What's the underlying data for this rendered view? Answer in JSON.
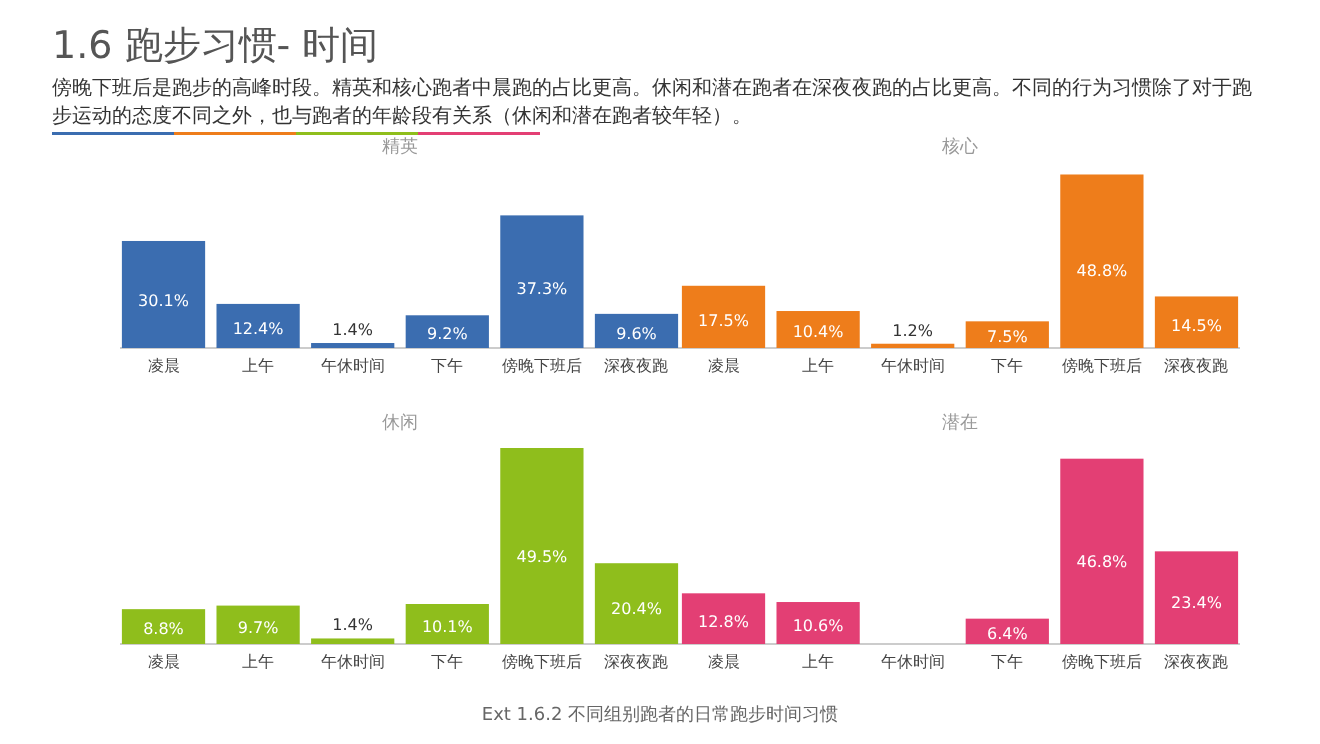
{
  "chart_data": [
    {
      "type": "other",
      "title": "1.6 跑步习惯- 时间",
      "subtitle": "傍晚下班后是跑步的高峰时段。精英和核心跑者中晨跑的占比更高。休闲和潜在跑者在深夜夜跑的占比更高。不同的行为习惯除了对于跑步运动的态度不同之外，也与跑者的年龄段有关系（休闲和潜在跑者较年轻）。",
      "annotations": [
        "Ext 1.6.2 不同组别跑者的日常跑步时间习惯"
      ]
    },
    {
      "type": "bar",
      "title": "精英",
      "categories": [
        "凌晨",
        "上午",
        "午休时间",
        "下午",
        "傍晚下班后",
        "深夜夜跑"
      ],
      "tick_labels": "x",
      "series": [
        {
          "color": "#3b6db0",
          "values": [
            30.1,
            12.4,
            1.4,
            9.2,
            37.3,
            9.6
          ],
          "value_labels": [
            "30.1%",
            "12.4%",
            "1.4%",
            "9.2%",
            "37.3%",
            "9.6%"
          ]
        }
      ]
    },
    {
      "type": "bar",
      "title": "核心",
      "categories": [
        "凌晨",
        "上午",
        "午休时间",
        "下午",
        "傍晚下班后",
        "深夜夜跑"
      ],
      "tick_labels": "x",
      "series": [
        {
          "color": "#ee7d1b",
          "values": [
            17.5,
            10.4,
            1.2,
            7.5,
            48.8,
            14.5
          ],
          "value_labels": [
            "17.5%",
            "10.4%",
            "1.2%",
            "7.5%",
            "48.8%",
            "14.5%"
          ]
        }
      ]
    },
    {
      "type": "bar",
      "title": "休闲",
      "categories": [
        "凌晨",
        "上午",
        "午休时间",
        "下午",
        "傍晚下班后",
        "深夜夜跑"
      ],
      "tick_labels": "x",
      "series": [
        {
          "color": "#8fbe1c",
          "values": [
            8.8,
            9.7,
            1.4,
            10.1,
            49.5,
            20.4
          ],
          "value_labels": [
            "8.8%",
            "9.7%",
            "1.4%",
            "10.1%",
            "49.5%",
            "20.4%"
          ]
        }
      ]
    },
    {
      "type": "bar",
      "title": "潜在",
      "categories": [
        "凌晨",
        "上午",
        "午休时间",
        "下午",
        "傍晚下班后",
        "深夜夜跑"
      ],
      "tick_labels": "x",
      "series": [
        {
          "color": "#e33f74",
          "values": [
            12.8,
            10.6,
            null,
            6.4,
            46.8,
            23.4
          ],
          "value_labels": [
            "12.8%",
            "10.6%",
            null,
            "6.4%",
            "46.8%",
            "23.4%"
          ]
        }
      ]
    }
  ]
}
